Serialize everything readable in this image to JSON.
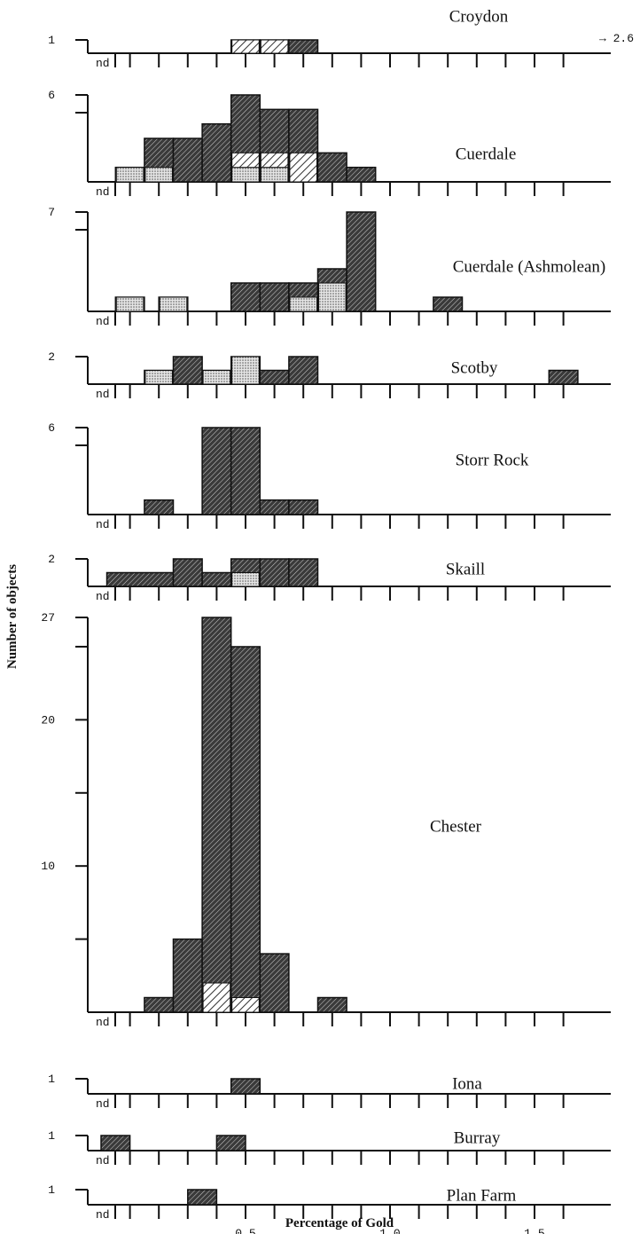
{
  "chart_data": {
    "type": "bar",
    "xlabel": "Percentage of Gold",
    "ylabel": "Number of objects",
    "x_ticks": [
      "0.5",
      "1.0",
      "1.5"
    ],
    "nd_label": "nd",
    "panels": [
      {
        "title": "Croydon",
        "y_labels": [
          "1"
        ],
        "ymax": 1,
        "offscale_note": "→ 2.6",
        "bars": [
          {
            "x0": 0.45,
            "x1": 0.55,
            "count": 1,
            "light": 0,
            "hatch": 1
          },
          {
            "x0": 0.55,
            "x1": 0.65,
            "count": 1,
            "light": 0,
            "hatch": 1
          },
          {
            "x0": 0.65,
            "x1": 0.75,
            "count": 1,
            "light": 0,
            "hatch": 0
          }
        ]
      },
      {
        "title": "Cuerdale",
        "y_labels": [
          "6"
        ],
        "ymax": 6,
        "bars": [
          {
            "x0": 0.05,
            "x1": 0.15,
            "count": 1,
            "light": 1,
            "hatch": 0
          },
          {
            "x0": 0.15,
            "x1": 0.25,
            "count": 3,
            "light": 1,
            "hatch": 0
          },
          {
            "x0": 0.25,
            "x1": 0.35,
            "count": 3,
            "light": 0,
            "hatch": 0
          },
          {
            "x0": 0.35,
            "x1": 0.45,
            "count": 4,
            "light": 0,
            "hatch": 0
          },
          {
            "x0": 0.45,
            "x1": 0.55,
            "count": 6,
            "light": 1,
            "hatch": 1
          },
          {
            "x0": 0.55,
            "x1": 0.65,
            "count": 5,
            "light": 1,
            "hatch": 1
          },
          {
            "x0": 0.65,
            "x1": 0.75,
            "count": 5,
            "light": 0,
            "hatch": 2
          },
          {
            "x0": 0.75,
            "x1": 0.85,
            "count": 2,
            "light": 0,
            "hatch": 0
          },
          {
            "x0": 0.85,
            "x1": 0.95,
            "count": 1,
            "light": 0,
            "hatch": 0
          }
        ]
      },
      {
        "title": "Cuerdale (Ashmolean)",
        "y_labels": [
          "7"
        ],
        "ymax": 7,
        "bars": [
          {
            "x0": 0.05,
            "x1": 0.15,
            "count": 1,
            "light": 1,
            "hatch": 0
          },
          {
            "x0": 0.2,
            "x1": 0.3,
            "count": 1,
            "light": 1,
            "hatch": 0
          },
          {
            "x0": 0.45,
            "x1": 0.55,
            "count": 2,
            "light": 0,
            "hatch": 0
          },
          {
            "x0": 0.55,
            "x1": 0.65,
            "count": 2,
            "light": 0,
            "hatch": 0
          },
          {
            "x0": 0.65,
            "x1": 0.75,
            "count": 2,
            "light": 1,
            "hatch": 0
          },
          {
            "x0": 0.75,
            "x1": 0.85,
            "count": 3,
            "light": 2,
            "hatch": 0
          },
          {
            "x0": 0.85,
            "x1": 0.95,
            "count": 7,
            "light": 0,
            "hatch": 0
          },
          {
            "x0": 1.15,
            "x1": 1.25,
            "count": 1,
            "light": 0,
            "hatch": 0
          }
        ]
      },
      {
        "title": "Scotby",
        "y_labels": [
          "2"
        ],
        "ymax": 2,
        "bars": [
          {
            "x0": 0.15,
            "x1": 0.25,
            "count": 1,
            "light": 1,
            "hatch": 0
          },
          {
            "x0": 0.25,
            "x1": 0.35,
            "count": 2,
            "light": 0,
            "hatch": 0
          },
          {
            "x0": 0.35,
            "x1": 0.45,
            "count": 1,
            "light": 1,
            "hatch": 0
          },
          {
            "x0": 0.45,
            "x1": 0.55,
            "count": 2,
            "light": 2,
            "hatch": 0
          },
          {
            "x0": 0.55,
            "x1": 0.65,
            "count": 1,
            "light": 0,
            "hatch": 0
          },
          {
            "x0": 0.65,
            "x1": 0.75,
            "count": 2,
            "light": 0,
            "hatch": 0
          },
          {
            "x0": 1.55,
            "x1": 1.65,
            "count": 1,
            "light": 0,
            "hatch": 0
          }
        ]
      },
      {
        "title": "Storr Rock",
        "y_labels": [
          "6"
        ],
        "ymax": 6,
        "bars": [
          {
            "x0": 0.15,
            "x1": 0.25,
            "count": 1,
            "light": 0,
            "hatch": 0
          },
          {
            "x0": 0.35,
            "x1": 0.45,
            "count": 6,
            "light": 0,
            "hatch": 0
          },
          {
            "x0": 0.45,
            "x1": 0.55,
            "count": 6,
            "light": 0,
            "hatch": 0
          },
          {
            "x0": 0.55,
            "x1": 0.65,
            "count": 1,
            "light": 0,
            "hatch": 0
          },
          {
            "x0": 0.65,
            "x1": 0.75,
            "count": 1,
            "light": 0,
            "hatch": 0
          }
        ]
      },
      {
        "title": "Skaill",
        "y_labels": [
          "2"
        ],
        "ymax": 2,
        "bars": [
          {
            "x0": 0.02,
            "x1": 0.25,
            "count": 1,
            "light": 0,
            "hatch": 0
          },
          {
            "x0": 0.25,
            "x1": 0.35,
            "count": 2,
            "light": 0,
            "hatch": 0
          },
          {
            "x0": 0.35,
            "x1": 0.45,
            "count": 1,
            "light": 0,
            "hatch": 0
          },
          {
            "x0": 0.45,
            "x1": 0.55,
            "count": 2,
            "light": 1,
            "hatch": 0
          },
          {
            "x0": 0.55,
            "x1": 0.65,
            "count": 2,
            "light": 0,
            "hatch": 0
          },
          {
            "x0": 0.65,
            "x1": 0.75,
            "count": 2,
            "light": 0,
            "hatch": 0
          }
        ]
      },
      {
        "title": "Chester",
        "y_labels": [
          "27",
          "20",
          "10"
        ],
        "y_label_values": [
          27,
          20,
          10
        ],
        "ymax": 27,
        "minor_ticks": [
          5,
          15,
          25
        ],
        "bars": [
          {
            "x0": 0.15,
            "x1": 0.25,
            "count": 1,
            "light": 0,
            "hatch": 0
          },
          {
            "x0": 0.25,
            "x1": 0.35,
            "count": 5,
            "light": 0,
            "hatch": 0
          },
          {
            "x0": 0.35,
            "x1": 0.45,
            "count": 27,
            "light": 0,
            "hatch": 2
          },
          {
            "x0": 0.45,
            "x1": 0.55,
            "count": 25,
            "light": 0,
            "hatch": 1
          },
          {
            "x0": 0.55,
            "x1": 0.65,
            "count": 4,
            "light": 0,
            "hatch": 0
          },
          {
            "x0": 0.75,
            "x1": 0.85,
            "count": 1,
            "light": 0,
            "hatch": 0
          }
        ]
      },
      {
        "title": "Iona",
        "y_labels": [
          "1"
        ],
        "ymax": 1,
        "bars": [
          {
            "x0": 0.45,
            "x1": 0.55,
            "count": 1,
            "light": 0,
            "hatch": 0
          }
        ]
      },
      {
        "title": "Burray",
        "y_labels": [
          "1"
        ],
        "ymax": 1,
        "bars": [
          {
            "x0": 0.0,
            "x1": 0.1,
            "count": 1,
            "light": 0,
            "hatch": 0
          },
          {
            "x0": 0.4,
            "x1": 0.5,
            "count": 1,
            "light": 0,
            "hatch": 0
          }
        ]
      },
      {
        "title": "Plan Farm",
        "y_labels": [
          "1"
        ],
        "ymax": 1,
        "bars": [
          {
            "x0": 0.3,
            "x1": 0.4,
            "count": 1,
            "light": 0,
            "hatch": 0
          }
        ]
      }
    ]
  }
}
